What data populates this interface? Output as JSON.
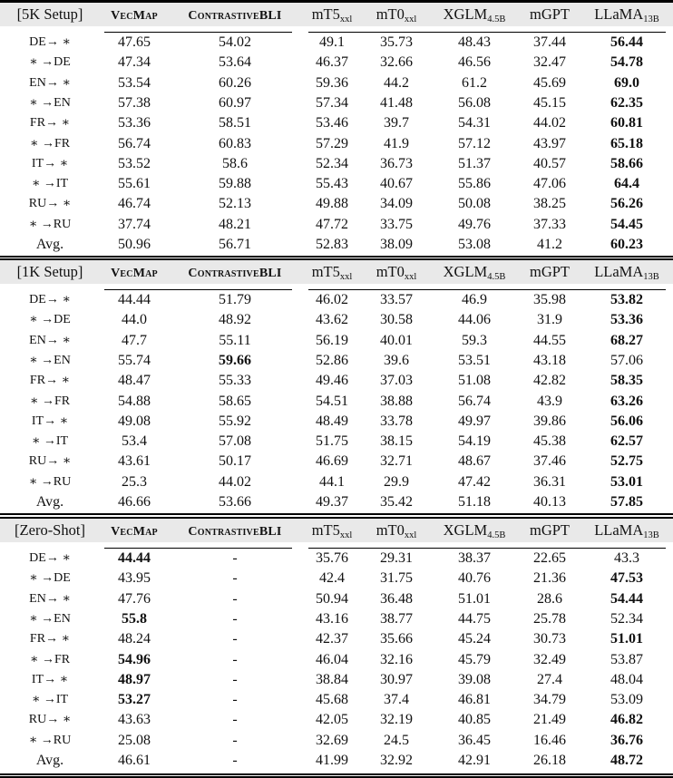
{
  "columns": [
    {
      "base": "",
      "sub": ""
    },
    {
      "base": "VecMap",
      "sub": "",
      "style": "smallcaps"
    },
    {
      "base": "Contrastive",
      "bold_suffix": "BLI",
      "sub": "",
      "style": "smallcaps"
    },
    {
      "base": "mT5",
      "sub": "xxl"
    },
    {
      "base": "mT0",
      "sub": "xxl"
    },
    {
      "base": "XGLM",
      "sub": "4.5B"
    },
    {
      "base": "mGPT",
      "sub": ""
    },
    {
      "base": "LLaMA",
      "sub": "13B"
    }
  ],
  "blocks": [
    {
      "setup": "[5K Setup]",
      "rows": [
        {
          "label": "DE→ ∗",
          "values": [
            "47.65",
            "54.02",
            "49.1",
            "35.73",
            "48.43",
            "37.44",
            "56.44"
          ],
          "bold": [
            6
          ]
        },
        {
          "label": "∗ →DE",
          "values": [
            "47.34",
            "53.64",
            "46.37",
            "32.66",
            "46.56",
            "32.47",
            "54.78"
          ],
          "bold": [
            6
          ]
        },
        {
          "label": "EN→ ∗",
          "values": [
            "53.54",
            "60.26",
            "59.36",
            "44.2",
            "61.2",
            "45.69",
            "69.0"
          ],
          "bold": [
            6
          ]
        },
        {
          "label": "∗ →EN",
          "values": [
            "57.38",
            "60.97",
            "57.34",
            "41.48",
            "56.08",
            "45.15",
            "62.35"
          ],
          "bold": [
            6
          ]
        },
        {
          "label": "FR→ ∗",
          "values": [
            "53.36",
            "58.51",
            "53.46",
            "39.7",
            "54.31",
            "44.02",
            "60.81"
          ],
          "bold": [
            6
          ]
        },
        {
          "label": "∗ →FR",
          "values": [
            "56.74",
            "60.83",
            "57.29",
            "41.9",
            "57.12",
            "43.97",
            "65.18"
          ],
          "bold": [
            6
          ]
        },
        {
          "label": "IT→ ∗",
          "values": [
            "53.52",
            "58.6",
            "52.34",
            "36.73",
            "51.37",
            "40.57",
            "58.66"
          ],
          "bold": [
            6
          ]
        },
        {
          "label": "∗ →IT",
          "values": [
            "55.61",
            "59.88",
            "55.43",
            "40.67",
            "55.86",
            "47.06",
            "64.4"
          ],
          "bold": [
            6
          ]
        },
        {
          "label": "RU→ ∗",
          "values": [
            "46.74",
            "52.13",
            "49.88",
            "34.09",
            "50.08",
            "38.25",
            "56.26"
          ],
          "bold": [
            6
          ]
        },
        {
          "label": "∗ →RU",
          "values": [
            "37.74",
            "48.21",
            "47.72",
            "33.75",
            "49.76",
            "37.33",
            "54.45"
          ],
          "bold": [
            6
          ]
        },
        {
          "label": "Avg.",
          "values": [
            "50.96",
            "56.71",
            "52.83",
            "38.09",
            "53.08",
            "41.2",
            "60.23"
          ],
          "bold": [
            6
          ]
        }
      ]
    },
    {
      "setup": "[1K Setup]",
      "rows": [
        {
          "label": "DE→ ∗",
          "values": [
            "44.44",
            "51.79",
            "46.02",
            "33.57",
            "46.9",
            "35.98",
            "53.82"
          ],
          "bold": [
            6
          ]
        },
        {
          "label": "∗ →DE",
          "values": [
            "44.0",
            "48.92",
            "43.62",
            "30.58",
            "44.06",
            "31.9",
            "53.36"
          ],
          "bold": [
            6
          ]
        },
        {
          "label": "EN→ ∗",
          "values": [
            "47.7",
            "55.11",
            "56.19",
            "40.01",
            "59.3",
            "44.55",
            "68.27"
          ],
          "bold": [
            6
          ]
        },
        {
          "label": "∗ →EN",
          "values": [
            "55.74",
            "59.66",
            "52.86",
            "39.6",
            "53.51",
            "43.18",
            "57.06"
          ],
          "bold": [
            1
          ]
        },
        {
          "label": "FR→ ∗",
          "values": [
            "48.47",
            "55.33",
            "49.46",
            "37.03",
            "51.08",
            "42.82",
            "58.35"
          ],
          "bold": [
            6
          ]
        },
        {
          "label": "∗ →FR",
          "values": [
            "54.88",
            "58.65",
            "54.51",
            "38.88",
            "56.74",
            "43.9",
            "63.26"
          ],
          "bold": [
            6
          ]
        },
        {
          "label": "IT→ ∗",
          "values": [
            "49.08",
            "55.92",
            "48.49",
            "33.78",
            "49.97",
            "39.86",
            "56.06"
          ],
          "bold": [
            6
          ]
        },
        {
          "label": "∗ →IT",
          "values": [
            "53.4",
            "57.08",
            "51.75",
            "38.15",
            "54.19",
            "45.38",
            "62.57"
          ],
          "bold": [
            6
          ]
        },
        {
          "label": "RU→ ∗",
          "values": [
            "43.61",
            "50.17",
            "46.69",
            "32.71",
            "48.67",
            "37.46",
            "52.75"
          ],
          "bold": [
            6
          ]
        },
        {
          "label": "∗ →RU",
          "values": [
            "25.3",
            "44.02",
            "44.1",
            "29.9",
            "47.42",
            "36.31",
            "53.01"
          ],
          "bold": [
            6
          ]
        },
        {
          "label": "Avg.",
          "values": [
            "46.66",
            "53.66",
            "49.37",
            "35.42",
            "51.18",
            "40.13",
            "57.85"
          ],
          "bold": [
            6
          ]
        }
      ]
    },
    {
      "setup": "[Zero-Shot]",
      "rows": [
        {
          "label": "DE→ ∗",
          "values": [
            "44.44",
            "-",
            "35.76",
            "29.31",
            "38.37",
            "22.65",
            "43.3"
          ],
          "bold": [
            0
          ]
        },
        {
          "label": "∗ →DE",
          "values": [
            "43.95",
            "-",
            "42.4",
            "31.75",
            "40.76",
            "21.36",
            "47.53"
          ],
          "bold": [
            6
          ]
        },
        {
          "label": "EN→ ∗",
          "values": [
            "47.76",
            "-",
            "50.94",
            "36.48",
            "51.01",
            "28.6",
            "54.44"
          ],
          "bold": [
            6
          ]
        },
        {
          "label": "∗ →EN",
          "values": [
            "55.8",
            "-",
            "43.16",
            "38.77",
            "44.75",
            "25.78",
            "52.34"
          ],
          "bold": [
            0
          ]
        },
        {
          "label": "FR→ ∗",
          "values": [
            "48.24",
            "-",
            "42.37",
            "35.66",
            "45.24",
            "30.73",
            "51.01"
          ],
          "bold": [
            6
          ]
        },
        {
          "label": "∗ →FR",
          "values": [
            "54.96",
            "-",
            "46.04",
            "32.16",
            "45.79",
            "32.49",
            "53.87"
          ],
          "bold": [
            0
          ]
        },
        {
          "label": "IT→ ∗",
          "values": [
            "48.97",
            "-",
            "38.84",
            "30.97",
            "39.08",
            "27.4",
            "48.04"
          ],
          "bold": [
            0
          ]
        },
        {
          "label": "∗ →IT",
          "values": [
            "53.27",
            "-",
            "45.68",
            "37.4",
            "46.81",
            "34.79",
            "53.09"
          ],
          "bold": [
            0
          ]
        },
        {
          "label": "RU→ ∗",
          "values": [
            "43.63",
            "-",
            "42.05",
            "32.19",
            "40.85",
            "21.49",
            "46.82"
          ],
          "bold": [
            6
          ]
        },
        {
          "label": "∗ →RU",
          "values": [
            "25.08",
            "-",
            "32.69",
            "24.5",
            "36.45",
            "16.46",
            "36.76"
          ],
          "bold": [
            6
          ]
        },
        {
          "label": "Avg.",
          "values": [
            "46.61",
            "-",
            "41.99",
            "32.92",
            "42.91",
            "26.18",
            "48.72"
          ],
          "bold": [
            6
          ]
        }
      ]
    }
  ]
}
